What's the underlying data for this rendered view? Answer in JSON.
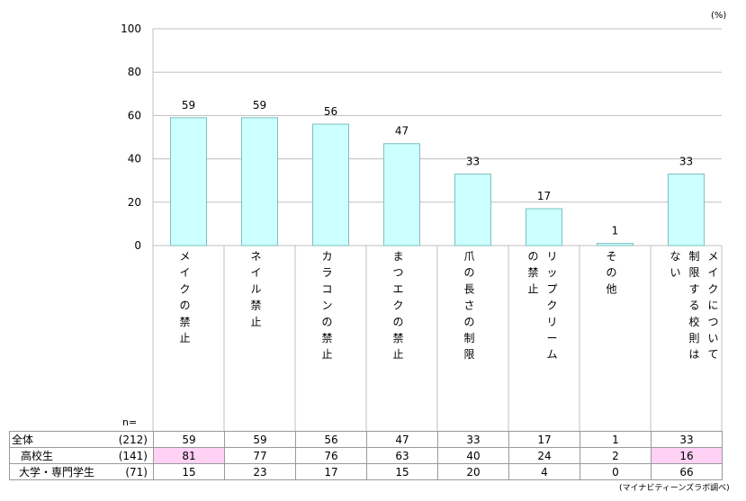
{
  "unit_label": "(%)",
  "n_label": "n=",
  "source": "(マイナビティーンズラボ調べ)",
  "colors": {
    "bar_fill": "#ccffff",
    "bar_stroke": "#7fbfbf",
    "grid": "#bfbfbf",
    "highlight": "#ffd1f5"
  },
  "chart_data": {
    "type": "bar",
    "categories": [
      "メイクの禁止",
      "ネイル禁止",
      "カラコンの禁止",
      "まつエクの禁止",
      "爪の長さの制限",
      "リップクリームの禁止",
      "その他",
      "メイクについて制限する校則はない"
    ],
    "values": [
      59,
      59,
      56,
      47,
      33,
      17,
      1,
      33
    ],
    "ylim": [
      0,
      100
    ],
    "yticks": [
      0,
      20,
      40,
      60,
      80,
      100
    ],
    "grid": true,
    "legend": "none",
    "title": "",
    "xlabel": "",
    "ylabel": ""
  },
  "table": {
    "rows": [
      {
        "label": "全体",
        "n": "(212)",
        "values": [
          "59",
          "59",
          "56",
          "47",
          "33",
          "17",
          "1",
          "33"
        ],
        "highlight": [
          false,
          false,
          false,
          false,
          false,
          false,
          false,
          false
        ]
      },
      {
        "label": "高校生",
        "n": "(141)",
        "values": [
          "81",
          "77",
          "76",
          "63",
          "40",
          "24",
          "2",
          "16"
        ],
        "highlight": [
          true,
          false,
          false,
          false,
          false,
          false,
          false,
          true
        ]
      },
      {
        "label": "大学・専門学生",
        "n": "(71)",
        "values": [
          "15",
          "23",
          "17",
          "15",
          "20",
          "4",
          "0",
          "66"
        ],
        "highlight": [
          false,
          false,
          false,
          false,
          false,
          false,
          false,
          false
        ]
      }
    ]
  }
}
